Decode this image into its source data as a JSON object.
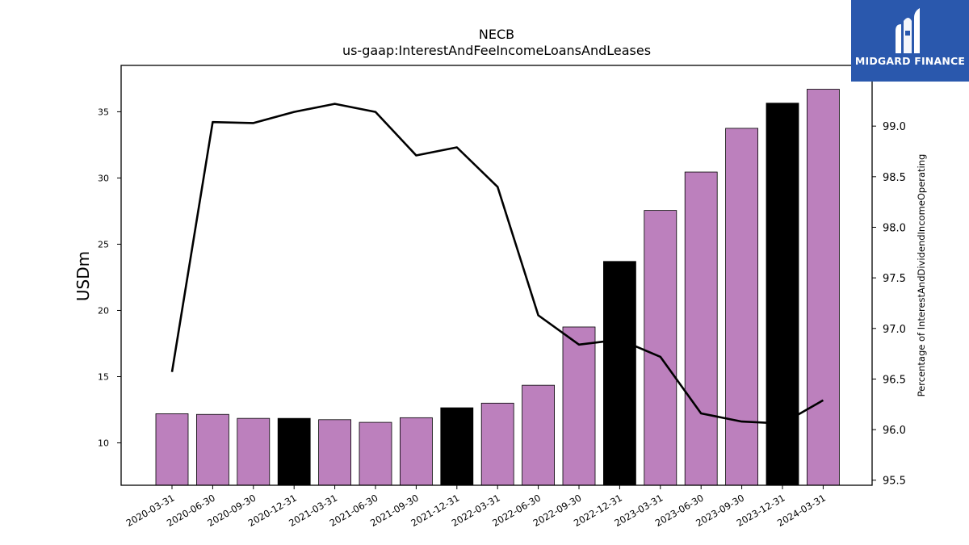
{
  "chart_data": {
    "type": "bar",
    "title": "NECB",
    "subtitle": "us-gaap:InterestAndFeeIncomeLoansAndLeases",
    "ylabel": "USDm",
    "y2label": "Percentage of InterestAndDividendIncomeOperating",
    "categories": [
      "2020-03-31",
      "2020-06-30",
      "2020-09-30",
      "2020-12-31",
      "2021-03-31",
      "2021-06-30",
      "2021-09-30",
      "2021-12-31",
      "2022-03-31",
      "2022-06-30",
      "2022-09-30",
      "2022-12-31",
      "2023-03-31",
      "2023-06-30",
      "2023-09-30",
      "2023-12-31",
      "2024-03-31"
    ],
    "series": [
      {
        "kind": "bar",
        "values": [
          12.2,
          12.15,
          11.85,
          11.85,
          11.75,
          11.55,
          11.9,
          12.65,
          13.0,
          14.35,
          18.75,
          23.7,
          27.55,
          30.45,
          33.75,
          35.65,
          36.7
        ],
        "colors": [
          "#bc80bd",
          "#bc80bd",
          "#bc80bd",
          "#000000",
          "#bc80bd",
          "#bc80bd",
          "#bc80bd",
          "#000000",
          "#bc80bd",
          "#bc80bd",
          "#bc80bd",
          "#000000",
          "#bc80bd",
          "#bc80bd",
          "#bc80bd",
          "#000000",
          "#bc80bd"
        ]
      },
      {
        "kind": "line",
        "axis": "right",
        "values": [
          96.57,
          99.04,
          99.03,
          99.14,
          99.22,
          99.14,
          98.71,
          98.79,
          98.4,
          97.13,
          96.84,
          96.89,
          96.72,
          96.16,
          96.08,
          96.06,
          96.29
        ]
      }
    ],
    "ylim": [
      6.8,
      38.5
    ],
    "yticks": [
      10,
      15,
      20,
      25,
      30,
      35
    ],
    "y2lim": [
      95.45,
      99.6
    ],
    "y2ticks": [
      95.5,
      96.0,
      96.5,
      97.0,
      97.5,
      98.0,
      98.5,
      99.0
    ],
    "grid": false,
    "colors": {
      "bar": "#bc80bd",
      "bar_highlight": "#000000",
      "line": "#000000"
    }
  },
  "logo": {
    "text": "MIDGARD FINANCE",
    "color": "#2a58ad"
  }
}
